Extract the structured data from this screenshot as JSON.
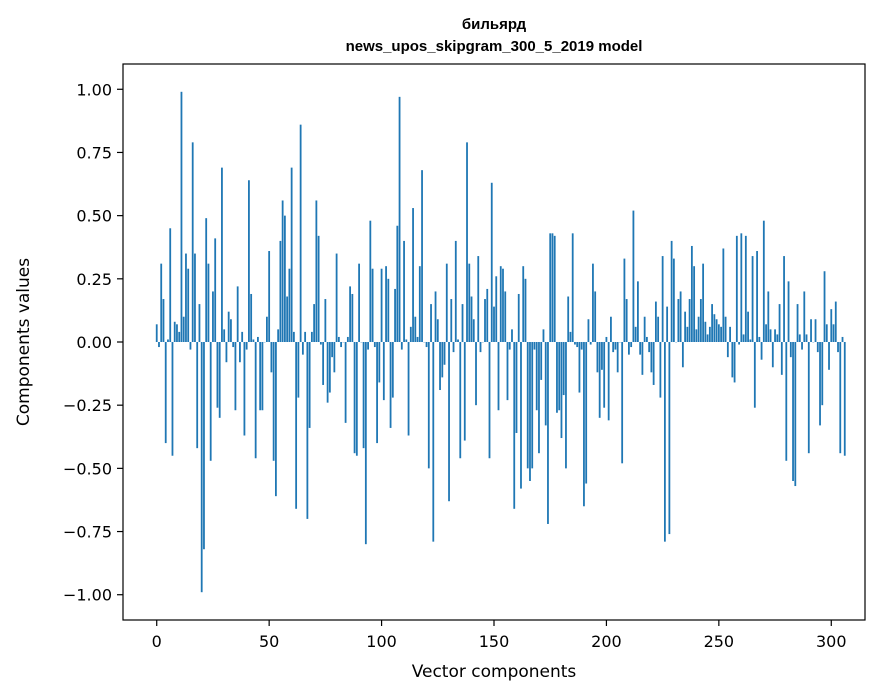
{
  "chart_data": {
    "type": "bar",
    "title": "бильярд",
    "subtitle": "news_upos_skipgram_300_5_2019 model",
    "xlabel": "Vector components",
    "ylabel": "Components values",
    "xlim": [
      -15,
      315
    ],
    "ylim": [
      -1.1,
      1.1
    ],
    "xticks": [
      0,
      50,
      100,
      150,
      200,
      250,
      300
    ],
    "yticks": [
      -1.0,
      -0.75,
      -0.5,
      -0.25,
      0.0,
      0.25,
      0.5,
      0.75,
      1.0
    ],
    "grid": false,
    "bar_color": "#1f77b4",
    "x_start": 0,
    "values": [
      0.07,
      -0.02,
      0.31,
      0.17,
      -0.4,
      0.01,
      0.45,
      -0.45,
      0.08,
      0.07,
      0.04,
      0.99,
      0.1,
      0.35,
      0.29,
      -0.03,
      0.79,
      0.35,
      -0.42,
      0.15,
      -0.99,
      -0.82,
      0.49,
      0.31,
      -0.47,
      0.2,
      0.41,
      -0.26,
      -0.3,
      0.69,
      0.05,
      -0.08,
      0.12,
      0.09,
      -0.02,
      -0.27,
      0.22,
      -0.08,
      0.04,
      -0.37,
      -0.03,
      0.64,
      0.19,
      0.01,
      -0.46,
      0.02,
      -0.27,
      -0.27,
      0.0,
      0.1,
      0.36,
      -0.12,
      -0.47,
      -0.61,
      0.05,
      0.4,
      0.56,
      0.5,
      0.18,
      0.29,
      0.69,
      0.04,
      -0.66,
      -0.22,
      0.86,
      -0.05,
      0.04,
      -0.7,
      -0.34,
      0.04,
      0.15,
      0.56,
      0.42,
      -0.01,
      -0.17,
      0.17,
      -0.24,
      -0.2,
      -0.06,
      -0.12,
      0.35,
      0.02,
      -0.02,
      0.0,
      -0.32,
      0.02,
      0.22,
      0.19,
      -0.44,
      -0.45,
      0.31,
      0.0,
      -0.42,
      -0.8,
      -0.03,
      0.48,
      0.29,
      -0.02,
      -0.4,
      -0.16,
      0.29,
      -0.23,
      0.3,
      0.25,
      -0.34,
      -0.22,
      0.21,
      0.46,
      0.97,
      -0.03,
      0.4,
      0.01,
      -0.37,
      0.06,
      0.53,
      0.1,
      0.02,
      0.3,
      0.68,
      0.0,
      -0.02,
      -0.5,
      0.15,
      -0.79,
      0.2,
      0.09,
      -0.19,
      -0.14,
      -0.09,
      0.31,
      -0.63,
      0.17,
      -0.04,
      0.4,
      0.01,
      -0.46,
      0.15,
      -0.39,
      0.79,
      0.31,
      0.18,
      0.09,
      -0.25,
      0.34,
      -0.04,
      0.0,
      0.17,
      0.21,
      -0.46,
      0.63,
      0.14,
      0.26,
      -0.27,
      0.3,
      0.29,
      0.2,
      -0.23,
      -0.03,
      0.05,
      -0.66,
      -0.36,
      0.19,
      -0.58,
      0.3,
      0.25,
      -0.5,
      -0.55,
      -0.5,
      -0.03,
      -0.27,
      -0.44,
      -0.15,
      0.05,
      -0.33,
      -0.72,
      0.43,
      0.43,
      0.42,
      -0.28,
      -0.27,
      -0.38,
      -0.21,
      -0.5,
      0.18,
      0.04,
      0.43,
      -0.01,
      -0.02,
      -0.2,
      -0.03,
      -0.65,
      -0.56,
      0.09,
      -0.01,
      0.31,
      0.2,
      -0.12,
      -0.3,
      -0.11,
      -0.26,
      0.02,
      -0.31,
      0.1,
      -0.04,
      -0.03,
      -0.12,
      0.0,
      -0.48,
      0.33,
      0.17,
      -0.05,
      -0.02,
      0.52,
      0.06,
      0.24,
      -0.05,
      -0.13,
      0.1,
      0.02,
      -0.04,
      -0.12,
      -0.17,
      0.16,
      0.1,
      -0.22,
      0.34,
      -0.79,
      0.14,
      -0.76,
      0.4,
      0.33,
      0.0,
      0.17,
      0.2,
      -0.1,
      0.12,
      0.06,
      0.17,
      0.38,
      0.3,
      0.05,
      0.1,
      0.17,
      0.31,
      0.08,
      0.03,
      0.06,
      0.15,
      0.11,
      0.09,
      0.07,
      0.06,
      0.37,
      0.1,
      -0.06,
      0.06,
      -0.14,
      -0.16,
      0.42,
      -0.01,
      0.43,
      0.03,
      0.42,
      0.12,
      0.01,
      0.34,
      -0.26,
      0.36,
      0.02,
      -0.07,
      0.48,
      0.07,
      0.2,
      0.05,
      -0.1,
      0.05,
      0.03,
      0.15,
      -0.13,
      0.34,
      -0.47,
      0.24,
      -0.06,
      -0.55,
      -0.57,
      0.15,
      0.03,
      -0.03,
      0.2,
      0.03,
      -0.44,
      0.09,
      0.0,
      0.09,
      -0.04,
      -0.33,
      -0.25,
      0.28,
      0.07,
      -0.11,
      0.13,
      0.07,
      0.16,
      -0.04,
      -0.44,
      0.02,
      -0.45
    ]
  }
}
